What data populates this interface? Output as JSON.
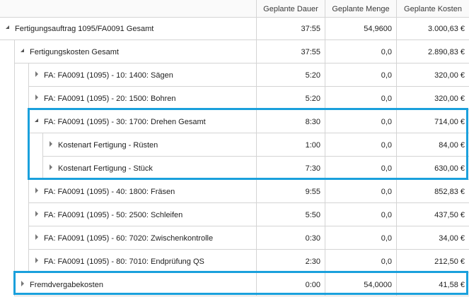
{
  "columns": {
    "duration": "Geplante Dauer",
    "quantity": "Geplante Menge",
    "cost": "Geplante Kosten"
  },
  "rows": [
    {
      "label": "Fertigungsauftrag 1095/FA0091 Gesamt",
      "duration": "37:55",
      "quantity": "54,9600",
      "cost": "3.000,63 €",
      "level": 0,
      "state": "expanded"
    },
    {
      "label": "Fertigungskosten Gesamt",
      "duration": "37:55",
      "quantity": "0,0",
      "cost": "2.890,83 €",
      "level": 1,
      "state": "expanded"
    },
    {
      "label": "FA: FA0091 (1095) - 10: 1400: Sägen",
      "duration": "5:20",
      "quantity": "0,0",
      "cost": "320,00 €",
      "level": 2,
      "state": "collapsed"
    },
    {
      "label": "FA: FA0091 (1095) - 20: 1500: Bohren",
      "duration": "5:20",
      "quantity": "0,0",
      "cost": "320,00 €",
      "level": 2,
      "state": "collapsed"
    },
    {
      "label": "FA: FA0091 (1095) - 30: 1700: Drehen Gesamt",
      "duration": "8:30",
      "quantity": "0,0",
      "cost": "714,00 €",
      "level": 2,
      "state": "expanded"
    },
    {
      "label": "Kostenart Fertigung - Rüsten",
      "duration": "1:00",
      "quantity": "0,0",
      "cost": "84,00 €",
      "level": 3,
      "state": "collapsed"
    },
    {
      "label": "Kostenart Fertigung - Stück",
      "duration": "7:30",
      "quantity": "0,0",
      "cost": "630,00 €",
      "level": 3,
      "state": "collapsed"
    },
    {
      "label": "FA: FA0091 (1095) - 40: 1800: Fräsen",
      "duration": "9:55",
      "quantity": "0,0",
      "cost": "852,83 €",
      "level": 2,
      "state": "collapsed"
    },
    {
      "label": "FA: FA0091 (1095) - 50: 2500: Schleifen",
      "duration": "5:50",
      "quantity": "0,0",
      "cost": "437,50 €",
      "level": 2,
      "state": "collapsed"
    },
    {
      "label": "FA: FA0091 (1095) - 60: 7020: Zwischenkontrolle",
      "duration": "0:30",
      "quantity": "0,0",
      "cost": "34,00 €",
      "level": 2,
      "state": "collapsed"
    },
    {
      "label": "FA: FA0091 (1095) - 80: 7010: Endprüfung QS",
      "duration": "2:30",
      "quantity": "0,0",
      "cost": "212,50 €",
      "level": 2,
      "state": "collapsed"
    },
    {
      "label": "Fremdvergabekosten",
      "duration": "0:00",
      "quantity": "54,0000",
      "cost": "41,58 €",
      "level": 1,
      "state": "collapsed"
    }
  ],
  "highlight_color": "#1aa0dc"
}
